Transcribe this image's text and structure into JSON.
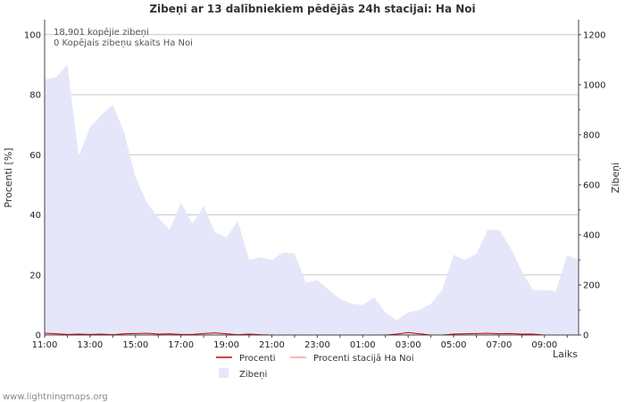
{
  "chart_data": {
    "type": "area",
    "title": "Zibeņi ar 13 dalībniekiem pēdējās 24h stacijai: Ha Noi",
    "ylabel_left": "Procenti   [%]",
    "ylabel_right": "Zibeņi",
    "xlabel": "Laiks",
    "left_axis": {
      "range": [
        0,
        105
      ],
      "ticks": [
        0,
        20,
        40,
        60,
        80,
        100
      ]
    },
    "right_axis": {
      "range": [
        0,
        1260
      ],
      "ticks": [
        0,
        200,
        400,
        600,
        800,
        1000,
        1200
      ]
    },
    "x_tick_labels": [
      "11:00",
      "13:00",
      "15:00",
      "17:00",
      "19:00",
      "21:00",
      "23:00",
      "01:00",
      "03:00",
      "05:00",
      "07:00",
      "09:00"
    ],
    "info_lines": [
      "18,901 kopējie zibeņi",
      "0 Kopējais zibeņu skaits Ha Noi"
    ],
    "series": [
      {
        "name": "Zibeņi",
        "axis": "right",
        "color": "#e6e6fa",
        "values": [
          1020,
          1030,
          1080,
          715,
          830,
          880,
          920,
          810,
          630,
          530,
          470,
          420,
          530,
          445,
          515,
          410,
          390,
          455,
          300,
          310,
          300,
          330,
          325,
          210,
          220,
          180,
          145,
          125,
          120,
          150,
          90,
          60,
          90,
          100,
          125,
          180,
          320,
          300,
          325,
          420,
          420,
          350,
          255,
          180,
          180,
          175,
          320,
          300
        ]
      },
      {
        "name": "Procenti",
        "axis": "left",
        "color": "#cc0000",
        "values": [
          0.6,
          0.4,
          0.2,
          0.3,
          0.2,
          0.3,
          0.1,
          0.4,
          0.5,
          0.6,
          0.3,
          0.4,
          0.2,
          0.2,
          0.5,
          0.7,
          0.4,
          0.1,
          0.3,
          0.1,
          0.0,
          0.0,
          0.0,
          0.0,
          0.0,
          0.0,
          0.0,
          0.0,
          0.0,
          0.0,
          0.0,
          0.3,
          0.8,
          0.4,
          0.0,
          0.0,
          0.3,
          0.4,
          0.5,
          0.6,
          0.4,
          0.5,
          0.3,
          0.3,
          0.0,
          0.0,
          0.0,
          0.0
        ]
      },
      {
        "name": "Procenti stacijā Ha Noi",
        "axis": "left",
        "color": "#ff9999",
        "values": [
          0,
          0,
          0,
          0,
          0,
          0,
          0,
          0,
          0,
          0,
          0,
          0,
          0,
          0,
          0,
          0,
          0,
          0,
          0,
          0,
          0,
          0,
          0,
          0,
          0,
          0,
          0,
          0,
          0,
          0,
          0,
          0,
          0,
          0,
          0,
          0,
          0,
          0,
          0,
          0,
          0,
          0,
          0,
          0,
          0,
          0,
          0,
          0
        ]
      }
    ],
    "legend": [
      {
        "label": "Procenti",
        "color": "#cc0000"
      },
      {
        "label": "Procenti stacijā Ha Noi",
        "color": "#ff9999"
      },
      {
        "label": "Zibeņi",
        "color": "#e6e6fa"
      }
    ]
  },
  "footer": "www.lightningmaps.org"
}
